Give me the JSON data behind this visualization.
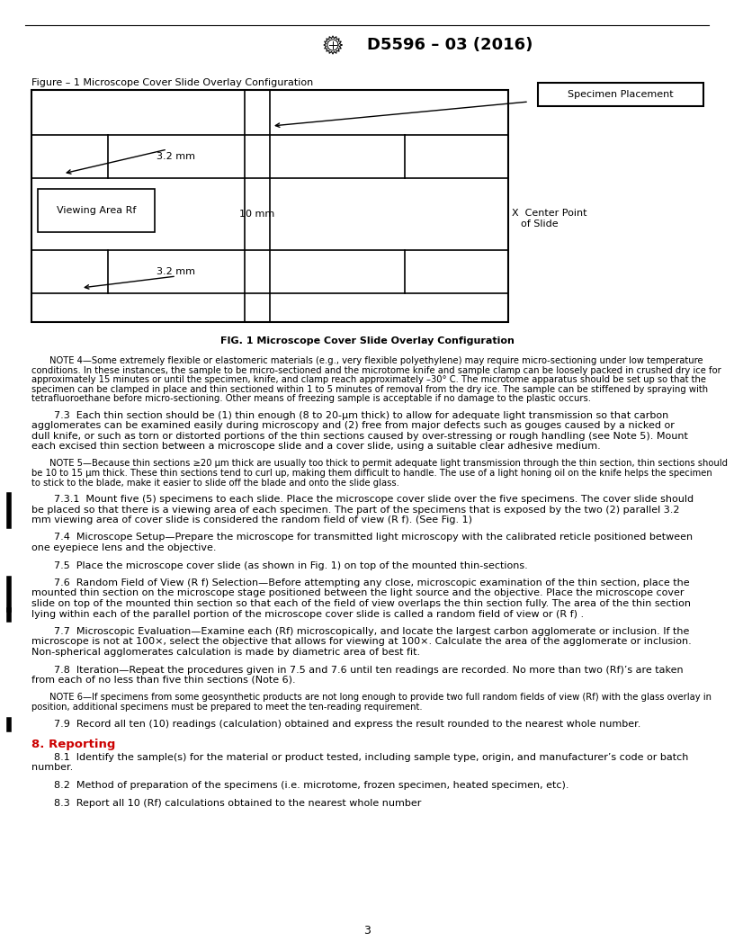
{
  "title": "D5596 – 03 (2016)",
  "page_number": "3",
  "fig_title_top": "Figure – 1 Microscope Cover Slide Overlay Configuration",
  "specimen_placement_label": "Specimen Placement",
  "fig_caption": "FIG. 1 Microscope Cover Slide Overlay Configuration",
  "viewing_area_label": "Viewing Area Rf",
  "dim_32_top": "3.2 mm",
  "dim_32_bot": "3.2 mm",
  "dim_10": "10 mm",
  "note4_lines": [
    "NOTE 4—Some extremely flexible or elastomeric materials (e.g., very flexible polyethylene) may require micro-sectioning under low temperature",
    "conditions. In these instances, the sample to be micro-sectioned and the microtome knife and sample clamp can be loosely packed in crushed dry ice for",
    "approximately 15 minutes or until the specimen, knife, and clamp reach approximately –30° C. The microtome apparatus should be set up so that the",
    "specimen can be clamped in place and thin sectioned within 1 to 5 minutes of removal from the dry ice. The sample can be stiffened by spraying with",
    "tetrafluoroethane before micro-sectioning. Other means of freezing sample is acceptable if no damage to the plastic occurs."
  ],
  "sec73_lines": [
    "7.3  Each thin section should be (1) thin enough (8 to 20-μm thick) to allow for adequate light transmission so that carbon",
    "agglomerates can be examined easily during microscopy and (2) free from major defects such as gouges caused by a nicked or",
    "dull knife, or such as torn or distorted portions of the thin sections caused by over-stressing or rough handling (see Note 5). Mount",
    "each excised thin section between a microscope slide and a cover slide, using a suitable clear adhesive medium."
  ],
  "note5_lines": [
    "NOTE 5—Because thin sections ≥20 μm thick are usually too thick to permit adequate light transmission through the thin section, thin sections should",
    "be 10 to 15 μm thick. These thin sections tend to curl up, making them difficult to handle. The use of a light honing oil on the knife helps the specimen",
    "to stick to the blade, make it easier to slide off the blade and onto the slide glass."
  ],
  "sec731_lines": [
    "7.3.1  Mount five (5) specimens to each slide. Place the microscope cover slide over the five specimens. The cover slide should",
    "be placed so that there is a viewing area of each specimen. The part of the specimens that is exposed by the two (2) parallel 3.2",
    "mm viewing area of cover slide is considered the random field of view (R f). (See Fig. 1)"
  ],
  "sec74_lines": [
    "7.4  Microscope Setup—Prepare the microscope for transmitted light microscopy with the calibrated reticle positioned between",
    "one eyepiece lens and the objective."
  ],
  "sec75_line": "7.5  Place the microscope cover slide (as shown in Fig. 1) on top of the mounted thin-sections.",
  "sec76_lines": [
    "7.6  Random Field of View (R f) Selection—Before attempting any close, microscopic examination of the thin section, place the",
    "mounted thin section on the microscope stage positioned between the light source and the objective. Place the microscope cover",
    "slide on top of the mounted thin section so that each of the field of view overlaps the thin section fully. The area of the thin section",
    "lying within each of the parallel portion of the microscope cover slide is called a random field of view or (R f) ."
  ],
  "sec77_lines": [
    "7.7  Microscopic Evaluation—Examine each (Rf) microscopically, and locate the largest carbon agglomerate or inclusion. If the",
    "microscope is not at 100×, select the objective that allows for viewing at 100×. Calculate the area of the agglomerate or inclusion.",
    "Non-spherical agglomerates calculation is made by diametric area of best fit."
  ],
  "sec78_lines": [
    "7.8  Iteration—Repeat the procedures given in 7.5 and 7.6 until ten readings are recorded. No more than two (Rf)’s are taken",
    "from each of no less than five thin sections (Note 6)."
  ],
  "note6_lines": [
    "NOTE 6—If specimens from some geosynthetic products are not long enough to provide two full random fields of view (Rf) with the glass overlay in",
    "position, additional specimens must be prepared to meet the ten-reading requirement."
  ],
  "sec79_line": "7.9  Record all ten (10) readings (calculation) obtained and express the result rounded to the nearest whole number.",
  "sec8_heading": "8. Reporting",
  "sec81_lines": [
    "8.1  Identify the sample(s) for the material or product tested, including sample type, origin, and manufacturer’s code or batch",
    "number."
  ],
  "sec82_line": "8.2  Method of preparation of the specimens (i.e. microtome, frozen specimen, heated specimen, etc).",
  "sec83_line": "8.3  Report all 10 (Rf) calculations obtained to the nearest whole number",
  "bg_color": "#ffffff",
  "text_color": "#000000",
  "red_color": "#cc0000"
}
